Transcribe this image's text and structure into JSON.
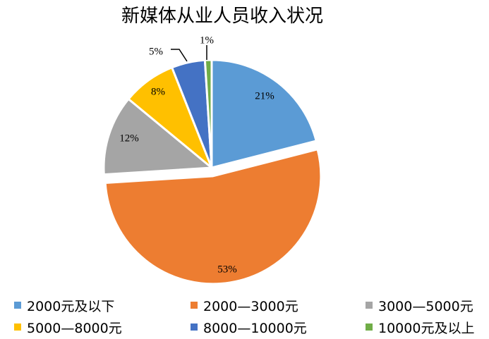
{
  "chart_data": {
    "type": "pie",
    "title": "新媒体从业人员收入状况",
    "categories": [
      "2000元及以下",
      "2000—3000元",
      "3000—5000元",
      "5000—8000元",
      "8000—10000元",
      "10000元及以上"
    ],
    "values": [
      21,
      53,
      12,
      8,
      5,
      1
    ],
    "data_labels": [
      "21%",
      "53%",
      "12%",
      "8%",
      "5%",
      "1%"
    ],
    "colors": [
      "#5B9BD5",
      "#ED7D31",
      "#A5A5A5",
      "#FFC000",
      "#4472C4",
      "#70AD47"
    ],
    "legend_position": "bottom",
    "exploded": true
  }
}
